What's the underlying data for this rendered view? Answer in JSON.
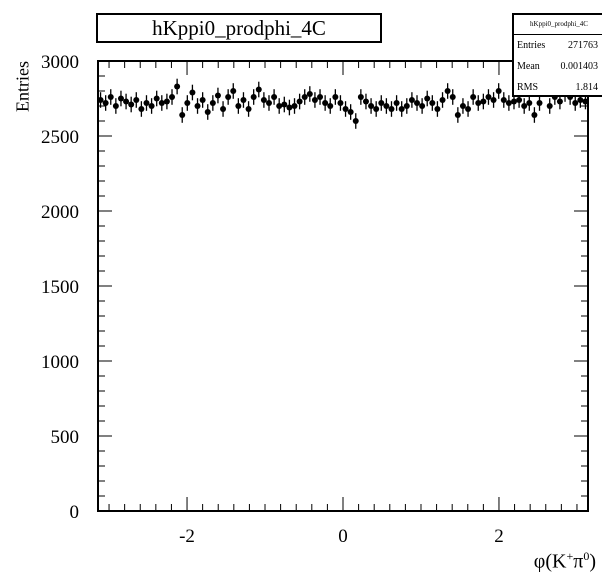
{
  "chart_data": {
    "type": "scatter",
    "title": "hKppi0_prodphi_4C",
    "xlabel": "φ(K⁺π⁰)",
    "xlabel_parts": {
      "base": "φ(K",
      "sup1": "+",
      "mid": "π",
      "sup2": "0",
      "end": ")"
    },
    "ylabel": "Entries",
    "xlim": [
      -3.1416,
      3.1416
    ],
    "ylim": [
      0,
      3000
    ],
    "x_ticks": [
      "-2",
      "0",
      "2"
    ],
    "y_ticks": [
      "0",
      "500",
      "1000",
      "1500",
      "2000",
      "2500",
      "3000"
    ],
    "grid": false,
    "legend": "none",
    "stats": {
      "title": "hKppi0_prodphi_4C",
      "entries_label": "Entries",
      "entries": "271763",
      "mean_label": "Mean",
      "mean": "0.001403",
      "rms_label": "RMS",
      "rms": "1.814"
    },
    "series": [
      {
        "y": [
          2740,
          2720,
          2760,
          2700,
          2750,
          2730,
          2710,
          2740,
          2680,
          2720,
          2700,
          2750,
          2720,
          2730,
          2760,
          2830,
          2640,
          2720,
          2790,
          2700,
          2740,
          2660,
          2720,
          2770,
          2680,
          2760,
          2800,
          2700,
          2740,
          2680,
          2760,
          2810,
          2740,
          2720,
          2760,
          2700,
          2710,
          2690,
          2700,
          2730,
          2760,
          2780,
          2740,
          2760,
          2720,
          2700,
          2760,
          2720,
          2680,
          2660,
          2600,
          2760,
          2730,
          2700,
          2680,
          2720,
          2700,
          2680,
          2720,
          2680,
          2700,
          2740,
          2720,
          2700,
          2750,
          2720,
          2680,
          2740,
          2800,
          2760,
          2640,
          2700,
          2680,
          2760,
          2720,
          2730,
          2760,
          2740,
          2800,
          2740,
          2720,
          2730,
          2740,
          2700,
          2720,
          2640,
          2720,
          2820,
          2700,
          2760,
          2730,
          2780,
          2760,
          2720,
          2740,
          2730
        ],
        "err": 52
      }
    ],
    "colors": {
      "marker": "#000000",
      "axes": "#000000",
      "background": "#ffffff"
    }
  }
}
